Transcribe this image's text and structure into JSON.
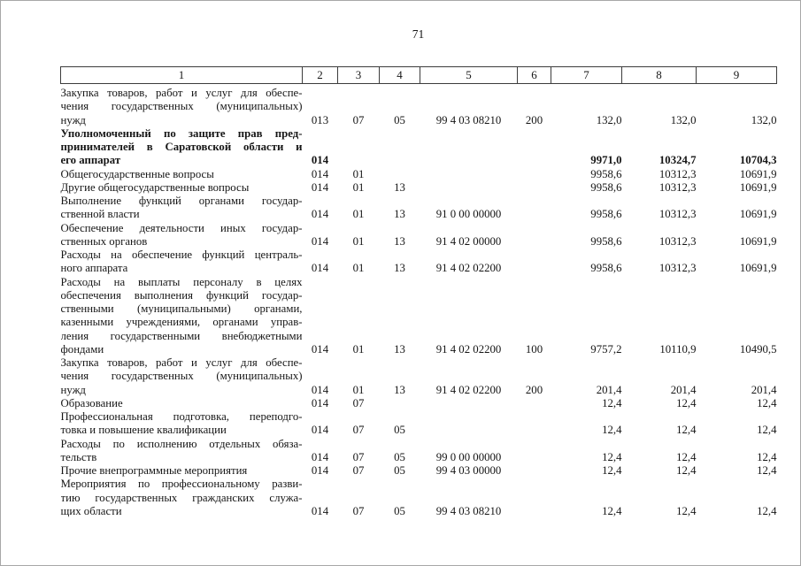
{
  "page": {
    "number": "71"
  },
  "table": {
    "column_headers": [
      "1",
      "2",
      "3",
      "4",
      "5",
      "6",
      "7",
      "8",
      "9"
    ],
    "rows": [
      {
        "bold": false,
        "label_lines": [
          "Закупка товаров, работ и услуг для обеспе-",
          "чения государственных (муниципальных)",
          "нужд"
        ],
        "cells": [
          "013",
          "07",
          "05",
          "99 4 03 08210",
          "200",
          "132,0",
          "132,0",
          "132,0"
        ]
      },
      {
        "bold": true,
        "label_lines": [
          "Уполномоченный по защите прав пред-",
          "принимателей в Саратовской области и",
          "его аппарат"
        ],
        "cells": [
          "014",
          "",
          "",
          "",
          "",
          "9971,0",
          "10324,7",
          "10704,3"
        ]
      },
      {
        "bold": false,
        "label_lines": [
          "Общегосударственные вопросы"
        ],
        "cells": [
          "014",
          "01",
          "",
          "",
          "",
          "9958,6",
          "10312,3",
          "10691,9"
        ]
      },
      {
        "bold": false,
        "label_lines": [
          "Другие общегосударственные вопросы"
        ],
        "cells": [
          "014",
          "01",
          "13",
          "",
          "",
          "9958,6",
          "10312,3",
          "10691,9"
        ]
      },
      {
        "bold": false,
        "label_lines": [
          "Выполнение функций органами государ-",
          "ственной власти"
        ],
        "cells": [
          "014",
          "01",
          "13",
          "91 0 00 00000",
          "",
          "9958,6",
          "10312,3",
          "10691,9"
        ]
      },
      {
        "bold": false,
        "label_lines": [
          "Обеспечение деятельности иных государ-",
          "ственных органов"
        ],
        "cells": [
          "014",
          "01",
          "13",
          "91 4 02 00000",
          "",
          "9958,6",
          "10312,3",
          "10691,9"
        ]
      },
      {
        "bold": false,
        "label_lines": [
          "Расходы на обеспечение функций централь-",
          "ного аппарата"
        ],
        "cells": [
          "014",
          "01",
          "13",
          "91 4 02 02200",
          "",
          "9958,6",
          "10312,3",
          "10691,9"
        ]
      },
      {
        "bold": false,
        "label_lines": [
          "Расходы на выплаты персоналу в целях",
          "обеспечения выполнения функций государ-",
          "ственными (муниципальными) органами,",
          "казенными учреждениями, органами управ-",
          "ления государственными внебюджетными",
          "фондами"
        ],
        "cells": [
          "014",
          "01",
          "13",
          "91 4 02 02200",
          "100",
          "9757,2",
          "10110,9",
          "10490,5"
        ]
      },
      {
        "bold": false,
        "label_lines": [
          "Закупка товаров, работ и услуг для обеспе-",
          "чения государственных (муниципальных)",
          "нужд"
        ],
        "cells": [
          "014",
          "01",
          "13",
          "91 4 02 02200",
          "200",
          "201,4",
          "201,4",
          "201,4"
        ]
      },
      {
        "bold": false,
        "label_lines": [
          "Образование"
        ],
        "cells": [
          "014",
          "07",
          "",
          "",
          "",
          "12,4",
          "12,4",
          "12,4"
        ]
      },
      {
        "bold": false,
        "label_lines": [
          "Профессиональная подготовка, переподго-",
          "товка и повышение квалификации"
        ],
        "cells": [
          "014",
          "07",
          "05",
          "",
          "",
          "12,4",
          "12,4",
          "12,4"
        ]
      },
      {
        "bold": false,
        "label_lines": [
          "Расходы по исполнению отдельных обяза-",
          "тельств"
        ],
        "cells": [
          "014",
          "07",
          "05",
          "99 0 00 00000",
          "",
          "12,4",
          "12,4",
          "12,4"
        ]
      },
      {
        "bold": false,
        "label_lines": [
          "Прочие внепрограммные мероприятия"
        ],
        "cells": [
          "014",
          "07",
          "05",
          "99 4 03 00000",
          "",
          "12,4",
          "12,4",
          "12,4"
        ]
      },
      {
        "bold": false,
        "label_lines": [
          "Мероприятия по профессиональному разви-",
          "тию государственных гражданских служа-",
          "щих области"
        ],
        "cells": [
          "014",
          "07",
          "05",
          "99 4 03 08210",
          "",
          "12,4",
          "12,4",
          "12,4"
        ]
      }
    ]
  }
}
